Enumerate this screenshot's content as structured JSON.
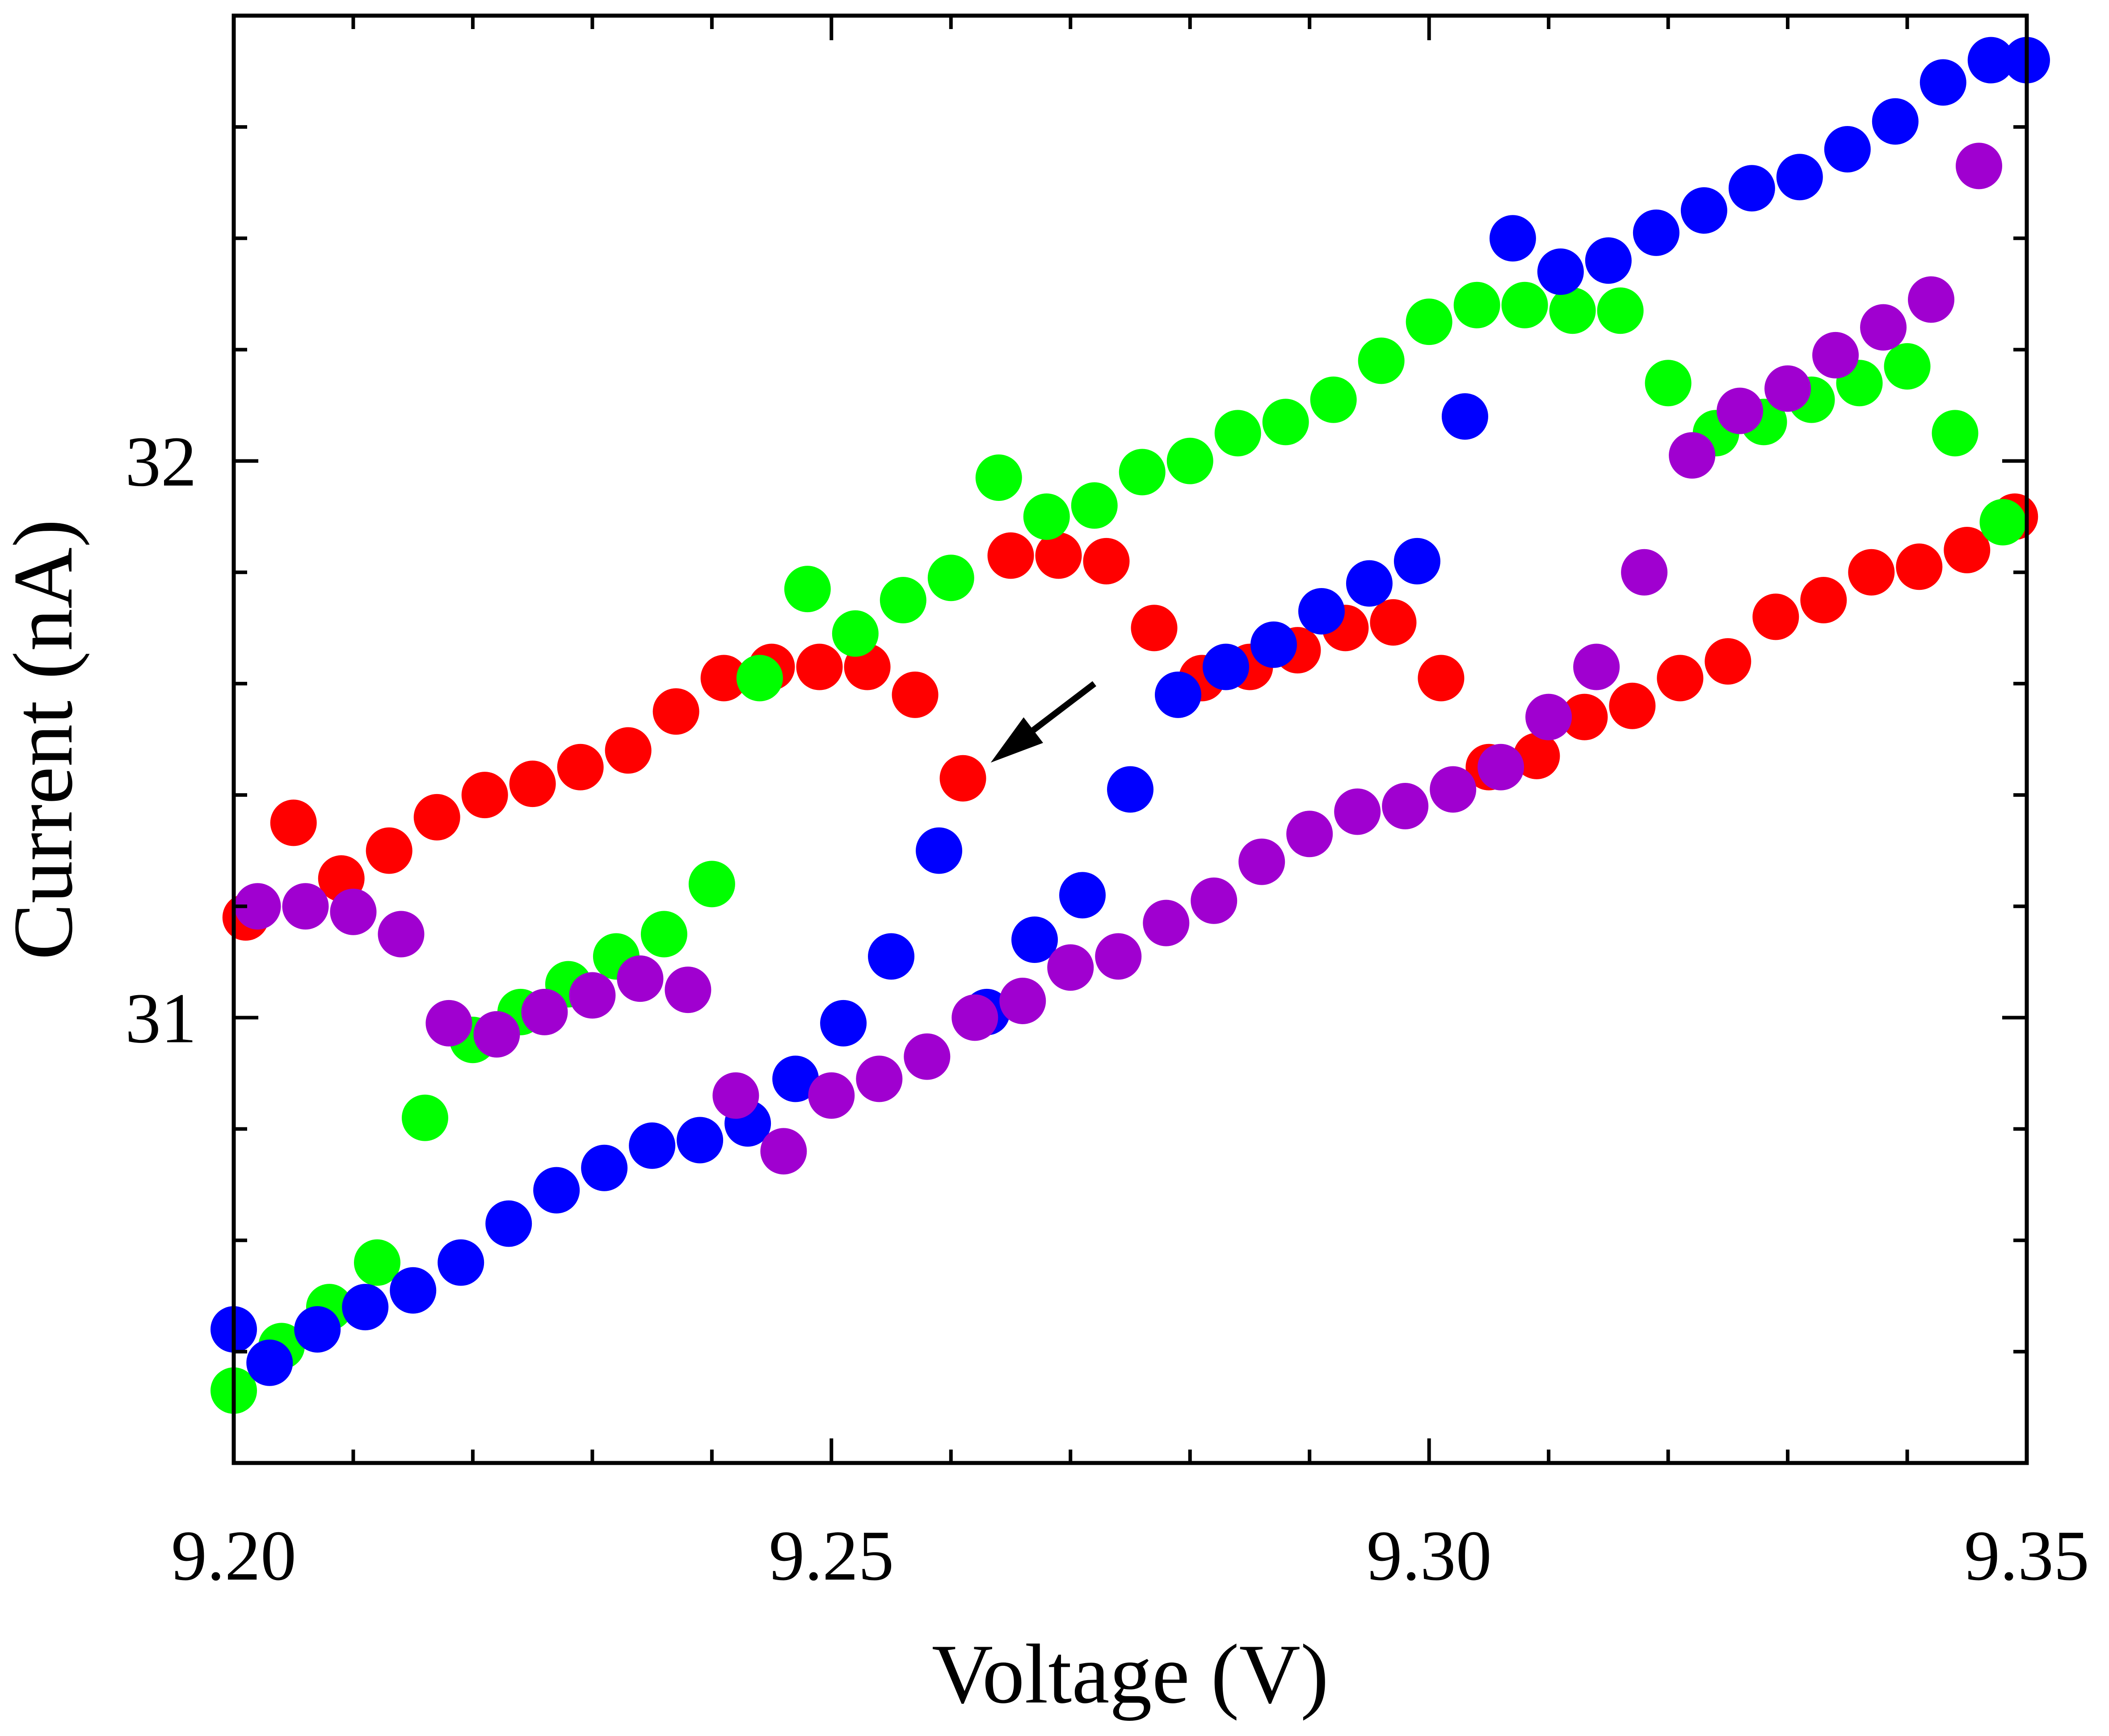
{
  "chart_data": {
    "type": "scatter",
    "title": "",
    "xlabel": "Voltage (V)",
    "ylabel": "Current (nA)",
    "xlim": [
      9.2,
      9.35
    ],
    "ylim": [
      30.2,
      32.8
    ],
    "x_ticks": [
      {
        "value": 9.2,
        "label": "9.20"
      },
      {
        "value": 9.25,
        "label": "9.25"
      },
      {
        "value": 9.3,
        "label": "9.30"
      },
      {
        "value": 9.35,
        "label": "9.35"
      }
    ],
    "y_ticks": [
      {
        "value": 31,
        "label": "31"
      },
      {
        "value": 32,
        "label": "32"
      }
    ],
    "grid": false,
    "annotation": {
      "type": "arrow",
      "points_to": [
        9.2616,
        31.43
      ],
      "from": [
        9.272,
        31.6
      ]
    },
    "series": [
      {
        "name": "red",
        "color": "#ff0000",
        "points": [
          [
            9.201,
            31.18
          ],
          [
            9.205,
            31.35
          ],
          [
            9.209,
            31.25
          ],
          [
            9.213,
            31.3
          ],
          [
            9.217,
            31.36
          ],
          [
            9.221,
            31.4
          ],
          [
            9.225,
            31.42
          ],
          [
            9.229,
            31.45
          ],
          [
            9.233,
            31.48
          ],
          [
            9.237,
            31.55
          ],
          [
            9.241,
            31.61
          ],
          [
            9.245,
            31.63
          ],
          [
            9.249,
            31.63
          ],
          [
            9.253,
            31.63
          ],
          [
            9.257,
            31.58
          ],
          [
            9.261,
            31.43
          ],
          [
            9.265,
            31.83
          ],
          [
            9.269,
            31.83
          ],
          [
            9.273,
            31.82
          ],
          [
            9.277,
            31.7
          ],
          [
            9.281,
            31.61
          ],
          [
            9.285,
            31.63
          ],
          [
            9.289,
            31.66
          ],
          [
            9.293,
            31.7
          ],
          [
            9.297,
            31.71
          ],
          [
            9.301,
            31.61
          ],
          [
            9.305,
            31.45
          ],
          [
            9.309,
            31.47
          ],
          [
            9.313,
            31.54
          ],
          [
            9.317,
            31.56
          ],
          [
            9.321,
            31.61
          ],
          [
            9.325,
            31.64
          ],
          [
            9.329,
            31.72
          ],
          [
            9.333,
            31.75
          ],
          [
            9.337,
            31.8
          ],
          [
            9.341,
            31.81
          ],
          [
            9.345,
            31.84
          ],
          [
            9.349,
            31.9
          ]
        ]
      },
      {
        "name": "green",
        "color": "#00ff00",
        "points": [
          [
            9.2,
            30.33
          ],
          [
            9.204,
            30.41
          ],
          [
            9.208,
            30.48
          ],
          [
            9.212,
            30.56
          ],
          [
            9.216,
            30.82
          ],
          [
            9.22,
            30.96
          ],
          [
            9.224,
            31.01
          ],
          [
            9.228,
            31.06
          ],
          [
            9.232,
            31.11
          ],
          [
            9.236,
            31.15
          ],
          [
            9.24,
            31.24
          ],
          [
            9.244,
            31.61
          ],
          [
            9.248,
            31.77
          ],
          [
            9.252,
            31.69
          ],
          [
            9.256,
            31.75
          ],
          [
            9.26,
            31.79
          ],
          [
            9.264,
            31.97
          ],
          [
            9.268,
            31.9
          ],
          [
            9.272,
            31.92
          ],
          [
            9.276,
            31.98
          ],
          [
            9.28,
            32.0
          ],
          [
            9.284,
            32.05
          ],
          [
            9.288,
            32.07
          ],
          [
            9.292,
            32.11
          ],
          [
            9.296,
            32.18
          ],
          [
            9.3,
            32.25
          ],
          [
            9.304,
            32.28
          ],
          [
            9.308,
            32.28
          ],
          [
            9.312,
            32.27
          ],
          [
            9.316,
            32.27
          ],
          [
            9.32,
            32.14
          ],
          [
            9.324,
            32.05
          ],
          [
            9.328,
            32.07
          ],
          [
            9.332,
            32.11
          ],
          [
            9.336,
            32.14
          ],
          [
            9.34,
            32.17
          ],
          [
            9.344,
            32.05
          ],
          [
            9.348,
            31.89
          ]
        ]
      },
      {
        "name": "blue",
        "color": "#0000ff",
        "points": [
          [
            9.2,
            30.44
          ],
          [
            9.203,
            30.38
          ],
          [
            9.207,
            30.44
          ],
          [
            9.211,
            30.48
          ],
          [
            9.215,
            30.51
          ],
          [
            9.219,
            30.56
          ],
          [
            9.223,
            30.63
          ],
          [
            9.227,
            30.69
          ],
          [
            9.231,
            30.73
          ],
          [
            9.235,
            30.77
          ],
          [
            9.239,
            30.78
          ],
          [
            9.243,
            30.81
          ],
          [
            9.247,
            30.89
          ],
          [
            9.251,
            30.99
          ],
          [
            9.255,
            31.11
          ],
          [
            9.259,
            31.3
          ],
          [
            9.263,
            31.01
          ],
          [
            9.267,
            31.14
          ],
          [
            9.271,
            31.22
          ],
          [
            9.275,
            31.41
          ],
          [
            9.279,
            31.58
          ],
          [
            9.283,
            31.63
          ],
          [
            9.287,
            31.67
          ],
          [
            9.291,
            31.73
          ],
          [
            9.295,
            31.78
          ],
          [
            9.299,
            31.82
          ],
          [
            9.303,
            32.08
          ],
          [
            9.307,
            32.4
          ],
          [
            9.311,
            32.34
          ],
          [
            9.315,
            32.36
          ],
          [
            9.319,
            32.41
          ],
          [
            9.323,
            32.45
          ],
          [
            9.327,
            32.49
          ],
          [
            9.331,
            32.51
          ],
          [
            9.335,
            32.56
          ],
          [
            9.339,
            32.61
          ],
          [
            9.343,
            32.68
          ],
          [
            9.347,
            32.72
          ],
          [
            9.35,
            32.72
          ]
        ]
      },
      {
        "name": "purple",
        "color": "#a000d0",
        "points": [
          [
            9.202,
            31.2
          ],
          [
            9.206,
            31.2
          ],
          [
            9.21,
            31.19
          ],
          [
            9.214,
            31.15
          ],
          [
            9.218,
            30.99
          ],
          [
            9.222,
            30.97
          ],
          [
            9.226,
            31.01
          ],
          [
            9.23,
            31.04
          ],
          [
            9.234,
            31.07
          ],
          [
            9.238,
            31.05
          ],
          [
            9.242,
            30.86
          ],
          [
            9.246,
            30.76
          ],
          [
            9.25,
            30.86
          ],
          [
            9.254,
            30.89
          ],
          [
            9.258,
            30.93
          ],
          [
            9.262,
            31.0
          ],
          [
            9.266,
            31.03
          ],
          [
            9.27,
            31.09
          ],
          [
            9.274,
            31.11
          ],
          [
            9.278,
            31.17
          ],
          [
            9.282,
            31.21
          ],
          [
            9.286,
            31.28
          ],
          [
            9.29,
            31.33
          ],
          [
            9.294,
            31.37
          ],
          [
            9.298,
            31.38
          ],
          [
            9.302,
            31.41
          ],
          [
            9.306,
            31.45
          ],
          [
            9.31,
            31.54
          ],
          [
            9.314,
            31.63
          ],
          [
            9.318,
            31.8
          ],
          [
            9.322,
            32.01
          ],
          [
            9.326,
            32.09
          ],
          [
            9.33,
            32.13
          ],
          [
            9.334,
            32.19
          ],
          [
            9.338,
            32.24
          ],
          [
            9.342,
            32.29
          ],
          [
            9.346,
            32.53
          ]
        ]
      }
    ]
  }
}
